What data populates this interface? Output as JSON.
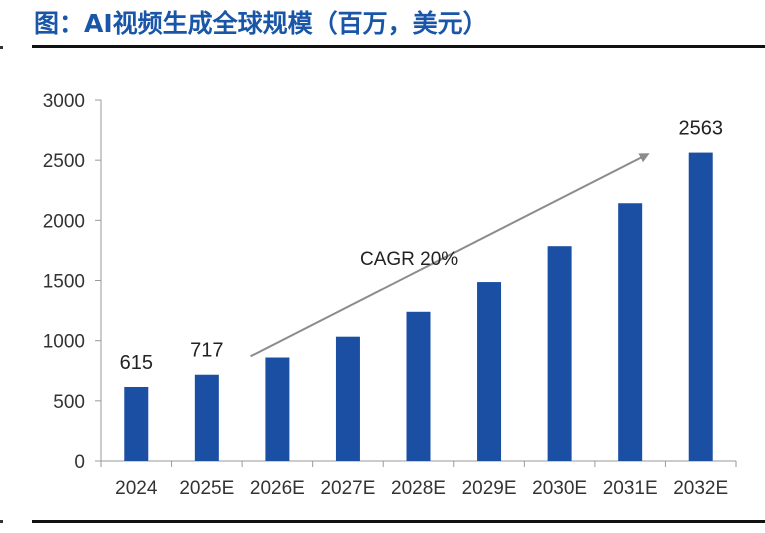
{
  "header": {
    "title": "图：AI视频生成全球规模（百万，美元）"
  },
  "colors": {
    "bar": "#1a4fa3",
    "title": "#1a56a8",
    "arrow": "#8c8c8c",
    "axis": "#9a9a9a"
  },
  "chart_data": {
    "type": "bar",
    "title": "图：AI视频生成全球规模（百万，美元）",
    "xlabel": "",
    "ylabel": "",
    "categories": [
      "2024",
      "2025E",
      "2026E",
      "2027E",
      "2028E",
      "2029E",
      "2030E",
      "2031E",
      "2032E"
    ],
    "values": [
      615,
      717,
      860,
      1033,
      1240,
      1487,
      1785,
      2142,
      2563
    ],
    "data_labels": {
      "2024": "615",
      "2025E": "717",
      "2032E": "2563"
    },
    "ylim": [
      0,
      3000
    ],
    "yticks": [
      0,
      500,
      1000,
      1500,
      2000,
      2500,
      3000
    ],
    "grid": false,
    "annotation": {
      "text": "CAGR 20%",
      "from_category": "2025E",
      "to_category": "2031E"
    }
  }
}
